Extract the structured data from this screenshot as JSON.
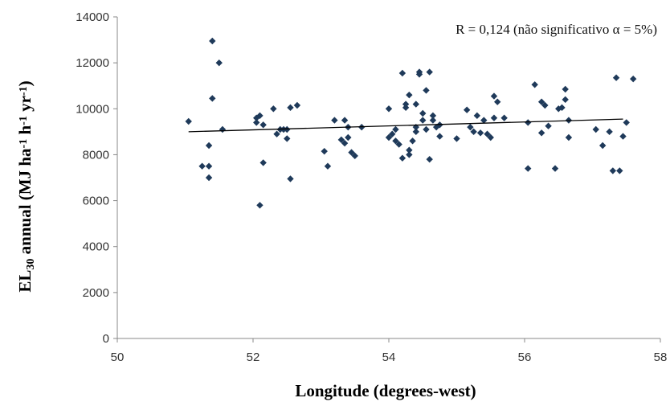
{
  "chart_data": {
    "type": "scatter",
    "xlabel": "Longitude (degrees-west)",
    "ylabel": {
      "parts": [
        {
          "text": "EL",
          "sub": false,
          "sup": false
        },
        {
          "text": "30",
          "sub": true,
          "sup": false
        },
        {
          "text": " annual (MJ ha",
          "sub": false,
          "sup": false
        },
        {
          "text": "-1",
          "sub": false,
          "sup": true
        },
        {
          "text": " h",
          "sub": false,
          "sup": false
        },
        {
          "text": "-1",
          "sub": false,
          "sup": true
        },
        {
          "text": " yr",
          "sub": false,
          "sup": false
        },
        {
          "text": "-1",
          "sub": false,
          "sup": true
        },
        {
          "text": ")",
          "sub": false,
          "sup": false
        }
      ]
    },
    "annotation": "R = 0,124 (não significativo α = 5%)",
    "xlim": [
      50,
      58
    ],
    "ylim": [
      0,
      14000
    ],
    "xticks": [
      50,
      52,
      54,
      56,
      58
    ],
    "yticks": [
      0,
      2000,
      4000,
      6000,
      8000,
      10000,
      12000,
      14000
    ],
    "grid": false,
    "marker_color": "#1f3a5a",
    "trendline": {
      "x": [
        51.05,
        57.45
      ],
      "y": [
        9000,
        9550
      ],
      "color": "#000000"
    },
    "points": [
      [
        51.05,
        9450
      ],
      [
        51.25,
        7500
      ],
      [
        51.35,
        7500
      ],
      [
        51.35,
        8400
      ],
      [
        51.35,
        7000
      ],
      [
        51.4,
        10450
      ],
      [
        51.4,
        12950
      ],
      [
        51.5,
        12000
      ],
      [
        51.55,
        9100
      ],
      [
        52.05,
        9600
      ],
      [
        52.05,
        9400
      ],
      [
        52.1,
        5800
      ],
      [
        52.1,
        9700
      ],
      [
        52.15,
        7650
      ],
      [
        52.15,
        9300
      ],
      [
        52.3,
        10000
      ],
      [
        52.35,
        8900
      ],
      [
        52.4,
        9100
      ],
      [
        52.45,
        9100
      ],
      [
        52.5,
        9100
      ],
      [
        52.5,
        8700
      ],
      [
        52.55,
        10050
      ],
      [
        52.55,
        6950
      ],
      [
        52.65,
        10150
      ],
      [
        53.05,
        8150
      ],
      [
        53.1,
        7500
      ],
      [
        53.2,
        9500
      ],
      [
        53.3,
        8650
      ],
      [
        53.35,
        8500
      ],
      [
        53.35,
        9500
      ],
      [
        53.4,
        9200
      ],
      [
        53.4,
        8750
      ],
      [
        53.45,
        8100
      ],
      [
        53.5,
        7950
      ],
      [
        53.6,
        9200
      ],
      [
        54.0,
        10000
      ],
      [
        54.0,
        8750
      ],
      [
        54.05,
        8900
      ],
      [
        54.1,
        8600
      ],
      [
        54.1,
        9100
      ],
      [
        54.15,
        8450
      ],
      [
        54.2,
        11550
      ],
      [
        54.2,
        7850
      ],
      [
        54.25,
        10050
      ],
      [
        54.25,
        10200
      ],
      [
        54.3,
        8000
      ],
      [
        54.3,
        8200
      ],
      [
        54.3,
        10600
      ],
      [
        54.35,
        8600
      ],
      [
        54.4,
        9000
      ],
      [
        54.4,
        10200
      ],
      [
        54.4,
        9200
      ],
      [
        54.45,
        11500
      ],
      [
        54.45,
        11600
      ],
      [
        54.5,
        9800
      ],
      [
        54.5,
        9500
      ],
      [
        54.55,
        10800
      ],
      [
        54.55,
        9100
      ],
      [
        54.6,
        11600
      ],
      [
        54.6,
        7800
      ],
      [
        54.65,
        9700
      ],
      [
        54.65,
        9500
      ],
      [
        54.7,
        9200
      ],
      [
        54.75,
        9300
      ],
      [
        54.75,
        8800
      ],
      [
        55.0,
        8700
      ],
      [
        55.15,
        9950
      ],
      [
        55.2,
        9200
      ],
      [
        55.25,
        9000
      ],
      [
        55.3,
        9700
      ],
      [
        55.35,
        8950
      ],
      [
        55.4,
        9500
      ],
      [
        55.45,
        8900
      ],
      [
        55.5,
        8750
      ],
      [
        55.55,
        9600
      ],
      [
        55.55,
        10550
      ],
      [
        55.6,
        10300
      ],
      [
        55.7,
        9600
      ],
      [
        56.05,
        7400
      ],
      [
        56.05,
        9400
      ],
      [
        56.15,
        11050
      ],
      [
        56.25,
        10300
      ],
      [
        56.25,
        8950
      ],
      [
        56.3,
        10150
      ],
      [
        56.35,
        9250
      ],
      [
        56.45,
        7400
      ],
      [
        56.5,
        10000
      ],
      [
        56.55,
        10050
      ],
      [
        56.6,
        10850
      ],
      [
        56.6,
        10400
      ],
      [
        56.65,
        9500
      ],
      [
        56.65,
        8750
      ],
      [
        57.05,
        9100
      ],
      [
        57.15,
        8400
      ],
      [
        57.25,
        9000
      ],
      [
        57.3,
        7300
      ],
      [
        57.35,
        11350
      ],
      [
        57.4,
        7300
      ],
      [
        57.45,
        8800
      ],
      [
        57.5,
        9400
      ],
      [
        57.6,
        11300
      ]
    ]
  }
}
